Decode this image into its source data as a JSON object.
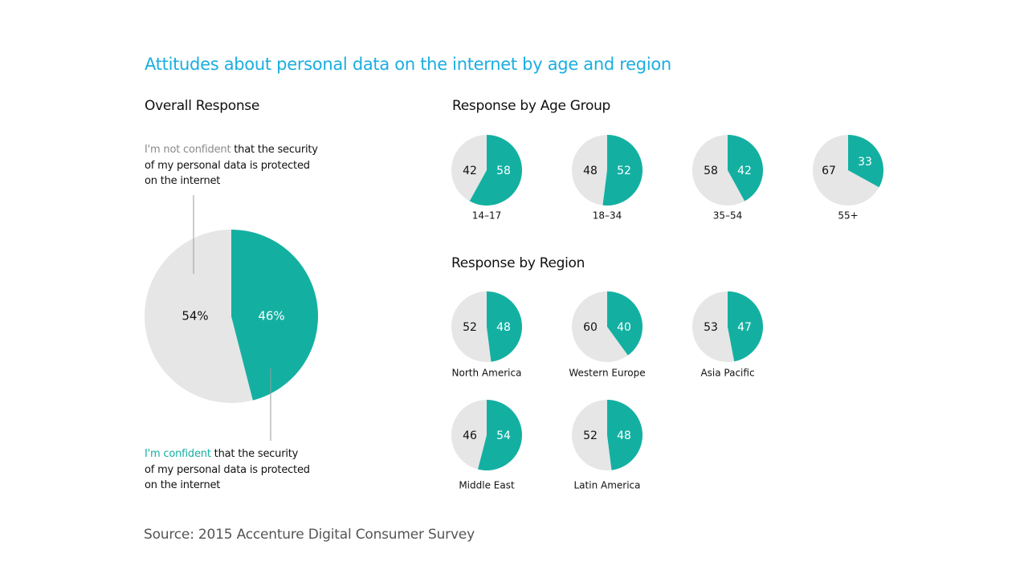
{
  "title": "Attitudes about personal data on the internet by age and region",
  "source": "Source: 2015 Accenture Digital Consumer Survey",
  "colors": {
    "title": "#1aaee0",
    "confident": "#13b0a2",
    "not_confident": "#e6e6e6",
    "not_confident_text": "#8a8a8a"
  },
  "overall": {
    "heading": "Overall Response",
    "not_confident_note": {
      "highlight": "I'm not confident",
      "rest_line1": " that the security",
      "line2": "of my personal data is protected",
      "line3": "on the internet"
    },
    "confident_note": {
      "highlight": "I'm confident",
      "rest_line1": " that the security",
      "line2": "of my personal data is protected",
      "line3": "on the internet"
    }
  },
  "age_heading": "Response by Age Group",
  "region_heading": "Response by Region",
  "chart_data": [
    {
      "type": "pie",
      "title": "Overall Response",
      "categories": [
        "Not confident",
        "Confident"
      ],
      "values": [
        54,
        46
      ],
      "labels": [
        "54%",
        "46%"
      ]
    },
    {
      "type": "pie",
      "title": "Response by Age Group",
      "series": [
        {
          "name": "14–17",
          "not_confident": 42,
          "confident": 58
        },
        {
          "name": "18–34",
          "not_confident": 48,
          "confident": 52
        },
        {
          "name": "35–54",
          "not_confident": 58,
          "confident": 42
        },
        {
          "name": "55+",
          "not_confident": 67,
          "confident": 33
        }
      ]
    },
    {
      "type": "pie",
      "title": "Response by Region",
      "series": [
        {
          "name": "North America",
          "not_confident": 52,
          "confident": 48
        },
        {
          "name": "Western Europe",
          "not_confident": 60,
          "confident": 40
        },
        {
          "name": "Asia Pacific",
          "not_confident": 53,
          "confident": 47
        },
        {
          "name": "Middle East",
          "not_confident": 46,
          "confident": 54
        },
        {
          "name": "Latin America",
          "not_confident": 52,
          "confident": 48
        }
      ]
    }
  ]
}
